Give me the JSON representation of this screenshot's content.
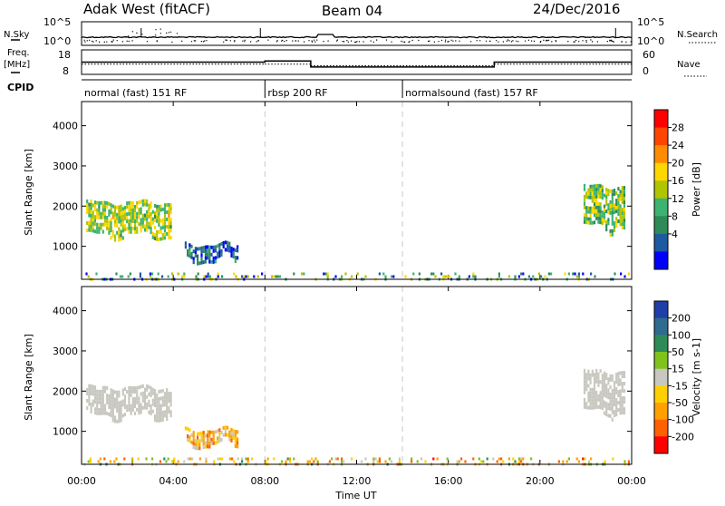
{
  "header": {
    "radar": "Adak West (fitACF)",
    "beam": "Beam 04",
    "date": "24/Dec/2016"
  },
  "noise_panel": {
    "left_label": "N.Sky",
    "right_label": "N.Search",
    "left_ticks": [
      "10^5",
      "10^0"
    ],
    "right_ticks": [
      "10^5",
      "10^0"
    ]
  },
  "freq_panel": {
    "left_label_1": "Freq.",
    "left_label_2": "[MHz]",
    "right_label": "Nave",
    "left_ticks": [
      "18",
      "8"
    ],
    "right_ticks": [
      "60",
      "0"
    ],
    "cpid_label": "CPID"
  },
  "modes": [
    {
      "label": "normal (fast) 151 RF",
      "start_h": 0,
      "end_h": 8
    },
    {
      "label": "rbsp 200 RF",
      "start_h": 8,
      "end_h": 14
    },
    {
      "label": "normalsound (fast) 157 RF",
      "start_h": 14,
      "end_h": 24
    }
  ],
  "freq_steps": [
    {
      "start_h": 0,
      "end_h": 8,
      "mhz": 13
    },
    {
      "start_h": 8,
      "end_h": 10,
      "mhz": 13.5
    },
    {
      "start_h": 10,
      "end_h": 18,
      "mhz": 11
    },
    {
      "start_h": 18,
      "end_h": 24,
      "mhz": 13
    }
  ],
  "time_axis": {
    "label": "Time UT",
    "ticks": [
      "00:00",
      "04:00",
      "08:00",
      "12:00",
      "16:00",
      "20:00",
      "00:00"
    ]
  },
  "range_axis": {
    "label": "Slant Range [km]",
    "ticks": [
      "1000",
      "2000",
      "3000",
      "4000"
    ]
  },
  "power_scale": {
    "label": "Power [dB]",
    "ticks": [
      "28",
      "24",
      "20",
      "16",
      "12",
      "8",
      "4"
    ],
    "colors": [
      "#ff0000",
      "#ff4500",
      "#ff8c00",
      "#ffd700",
      "#b0c400",
      "#3cb371",
      "#2e8b57",
      "#1e5aa0",
      "#0000ff"
    ]
  },
  "velocity_scale": {
    "label": "Velocity [m s-1]",
    "ticks": [
      "200",
      "100",
      "50",
      "15",
      "-15",
      "-50",
      "-100",
      "-200"
    ],
    "colors": [
      "#1f3fa8",
      "#2e6b8e",
      "#2e8b57",
      "#7fc31c",
      "#c8c8c0",
      "#ffd000",
      "#ffa000",
      "#ff6000",
      "#ff0000"
    ]
  },
  "chart_data": [
    {
      "type": "heatmap",
      "title": "Power",
      "xlabel": "Time UT",
      "ylabel": "Slant Range [km]",
      "xlim": [
        0,
        24
      ],
      "ylim": [
        180,
        4600
      ],
      "colorbar": {
        "label": "Power [dB]",
        "range": [
          0,
          32
        ]
      },
      "regions": [
        {
          "t0": 0.2,
          "t1": 3.9,
          "r0": 1300,
          "r1": 2100,
          "value": 16
        },
        {
          "t0": 4.5,
          "t1": 6.8,
          "r0": 700,
          "r1": 1050,
          "value": 6
        },
        {
          "t0": 21.9,
          "t1": 23.7,
          "r0": 1500,
          "r1": 2500,
          "value": 14
        },
        {
          "t0": 0,
          "t1": 24,
          "r0": 180,
          "r1": 350,
          "value": 10
        }
      ]
    },
    {
      "type": "heatmap",
      "title": "Velocity",
      "xlabel": "Time UT",
      "ylabel": "Slant Range [km]",
      "xlim": [
        0,
        24
      ],
      "ylim": [
        180,
        4600
      ],
      "colorbar": {
        "label": "Velocity [m s-1]",
        "range": [
          -200,
          200
        ]
      },
      "regions": [
        {
          "t0": 0.2,
          "t1": 3.9,
          "r0": 1400,
          "r1": 2100,
          "value": 0
        },
        {
          "t0": 4.5,
          "t1": 6.8,
          "r0": 700,
          "r1": 1050,
          "value": -60
        },
        {
          "t0": 21.9,
          "t1": 23.7,
          "r0": 1500,
          "r1": 2500,
          "value": 0
        },
        {
          "t0": 0,
          "t1": 24,
          "r0": 180,
          "r1": 350,
          "value": -40
        }
      ]
    }
  ]
}
